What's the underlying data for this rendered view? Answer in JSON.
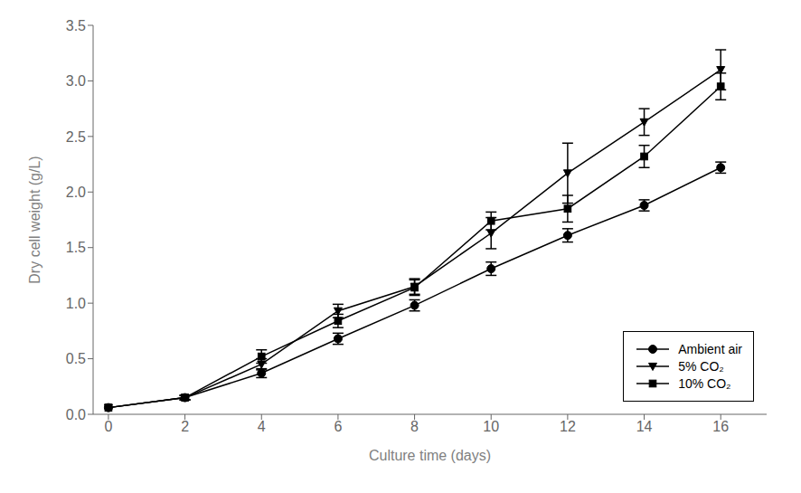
{
  "chart_data": {
    "type": "line",
    "x": [
      0,
      2,
      4,
      6,
      8,
      10,
      12,
      14,
      16
    ],
    "series": [
      {
        "name": "Ambient air",
        "color": "#000000",
        "marker": "circle",
        "line_style": "solid",
        "values": [
          0.06,
          0.15,
          0.37,
          0.68,
          0.98,
          1.31,
          1.61,
          1.88,
          2.22
        ],
        "errors": [
          0.0,
          0.02,
          0.04,
          0.05,
          0.05,
          0.06,
          0.06,
          0.05,
          0.05
        ]
      },
      {
        "name": "5% CO₂",
        "color": "#000000",
        "marker": "triangle-down",
        "line_style": "solid",
        "values": [
          0.06,
          0.15,
          0.45,
          0.93,
          1.15,
          1.63,
          2.17,
          2.63,
          3.1
        ],
        "errors": [
          0.0,
          0.02,
          0.05,
          0.06,
          0.07,
          0.14,
          0.27,
          0.12,
          0.18
        ]
      },
      {
        "name": "10% CO₂",
        "color": "#000000",
        "marker": "square",
        "line_style": "solid",
        "values": [
          0.06,
          0.15,
          0.52,
          0.84,
          1.14,
          1.74,
          1.85,
          2.32,
          2.95
        ],
        "errors": [
          0.0,
          0.02,
          0.06,
          0.06,
          0.07,
          0.08,
          0.12,
          0.1,
          0.12
        ]
      }
    ],
    "x_label": "Culture time (days)",
    "y_label": "Dry cell weight (g/L)",
    "xlim": [
      -0.4,
      17.2
    ],
    "ylim": [
      0,
      3.5
    ],
    "xticks": [
      0,
      2,
      4,
      6,
      8,
      10,
      12,
      14,
      16
    ],
    "yticks": [
      {
        "value": 0,
        "label": "0.0"
      },
      0.5,
      {
        "value": 1,
        "label": "1.0"
      },
      1.5,
      {
        "value": 2,
        "label": "2.0"
      },
      2.5,
      {
        "value": 3,
        "label": "3.0"
      },
      3.5
    ],
    "legend": "lower right",
    "grid": false
  }
}
